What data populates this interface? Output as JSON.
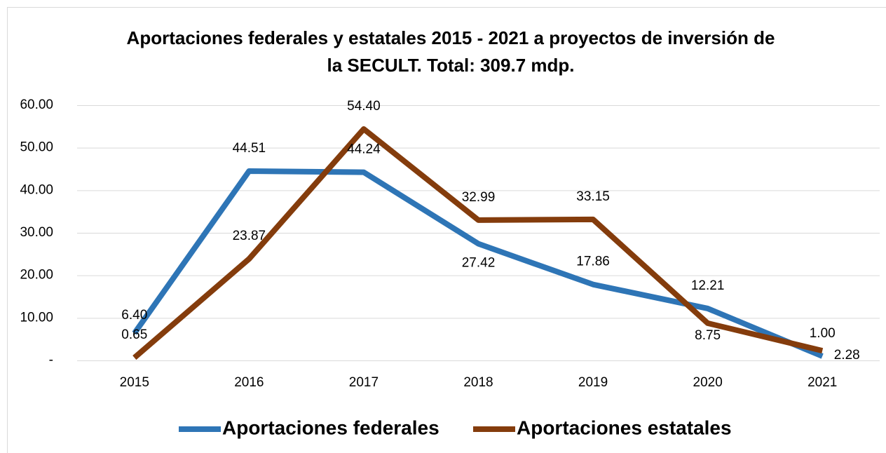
{
  "chart_data": {
    "type": "line",
    "title": [
      "Aportaciones federales y estatales 2015 - 2021 a proyectos de inversión de",
      "la SECULT. Total: 309.7 mdp."
    ],
    "categories": [
      "2015",
      "2016",
      "2017",
      "2018",
      "2019",
      "2020",
      "2021"
    ],
    "series": [
      {
        "name": "Aportaciones federales",
        "color": "#2e75b6",
        "values": [
          6.4,
          44.51,
          44.24,
          27.42,
          17.86,
          12.21,
          1.0
        ],
        "value_labels": [
          "6.40",
          "44.51",
          "44.24",
          "27.42",
          "17.86",
          "12.21",
          "1.00"
        ]
      },
      {
        "name": "Aportaciones estatales",
        "color": "#843c0c",
        "values": [
          0.65,
          23.87,
          54.4,
          32.99,
          33.15,
          8.75,
          2.28
        ],
        "value_labels": [
          "0.65",
          "23.87",
          "54.40",
          "32.99",
          "33.15",
          "8.75",
          "2.28"
        ]
      }
    ],
    "ylim": [
      0,
      60
    ],
    "yticks": [
      {
        "value": 0,
        "label": "-"
      },
      {
        "value": 10,
        "label": "10.00"
      },
      {
        "value": 20,
        "label": "20.00"
      },
      {
        "value": 30,
        "label": "30.00"
      },
      {
        "value": 40,
        "label": "40.00"
      },
      {
        "value": 50,
        "label": "50.00"
      },
      {
        "value": 60,
        "label": "60.00"
      }
    ],
    "grid": true,
    "legend": "bottom"
  }
}
